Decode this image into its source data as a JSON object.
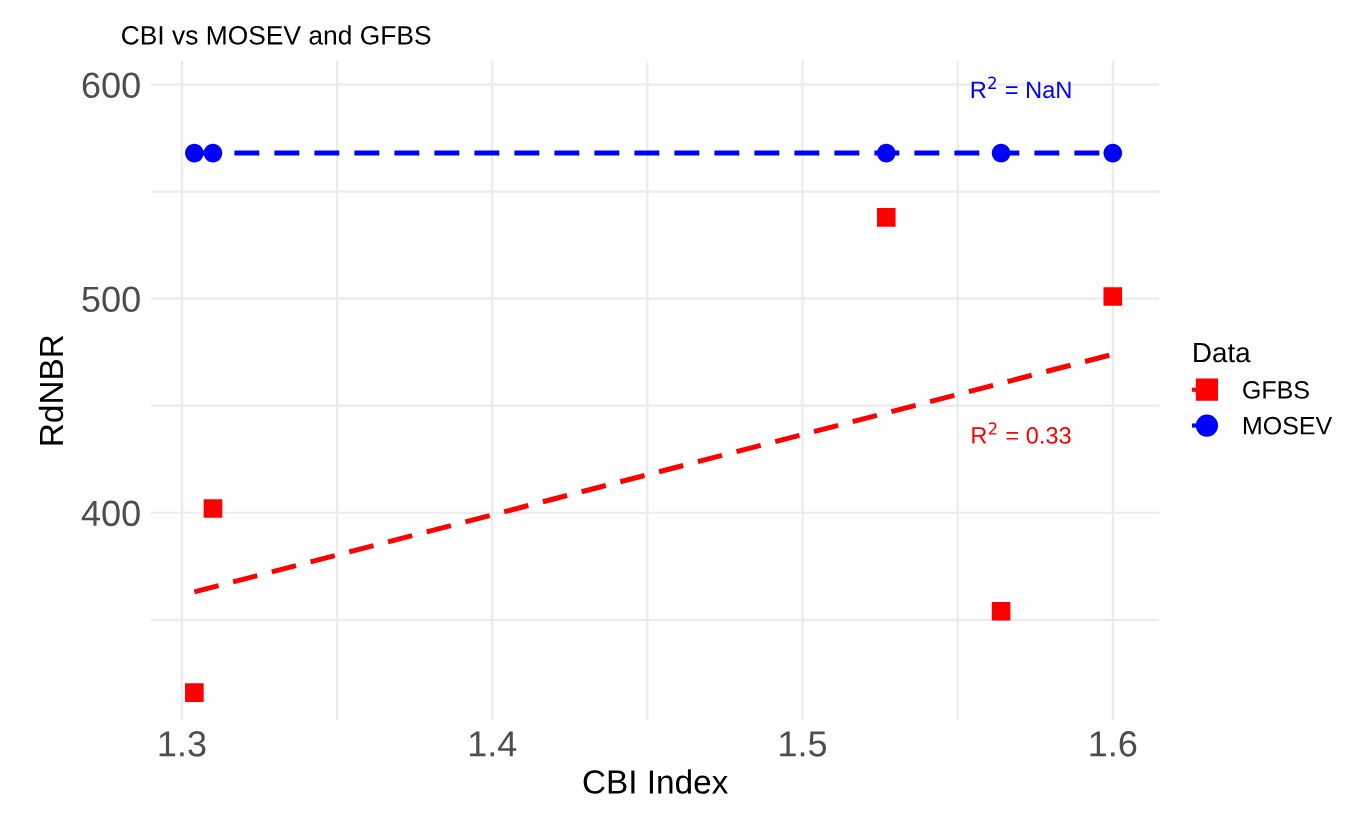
{
  "chart_data": {
    "type": "scatter",
    "title": "CBI vs MOSEV and GFBS",
    "xlabel": "CBI Index",
    "ylabel": "RdNBR",
    "legend_title": "Data",
    "series": [
      {
        "name": "GFBS",
        "color": "#ff0000",
        "marker": "square",
        "x": [
          1.304,
          1.31,
          1.527,
          1.564,
          1.6
        ],
        "values": [
          316,
          402,
          538,
          354,
          501
        ]
      },
      {
        "name": "MOSEV",
        "color": "#0000ff",
        "marker": "circle",
        "x": [
          1.304,
          1.31,
          1.527,
          1.564,
          1.6
        ],
        "values": [
          568,
          568,
          568,
          568,
          568
        ]
      },
      {
        "type": "line",
        "color": "#ff0000",
        "line_style": "dashed",
        "x": [
          1.304,
          1.6
        ],
        "values": [
          363,
          474
        ]
      },
      {
        "type": "line",
        "color": "#0000ff",
        "line_style": "dashed",
        "x": [
          1.304,
          1.6
        ],
        "values": [
          568,
          568
        ]
      }
    ],
    "annotations": [
      "R$^{2}$ = 0.33",
      "R$^{2}$ = NaN"
    ],
    "xlim": [
      1.29,
      1.615
    ],
    "ylim": [
      303,
      611
    ],
    "xticks": [
      1.3,
      1.4,
      1.5,
      1.6
    ],
    "yticks": [
      400,
      500,
      600
    ],
    "grid": true,
    "legend": "right"
  }
}
